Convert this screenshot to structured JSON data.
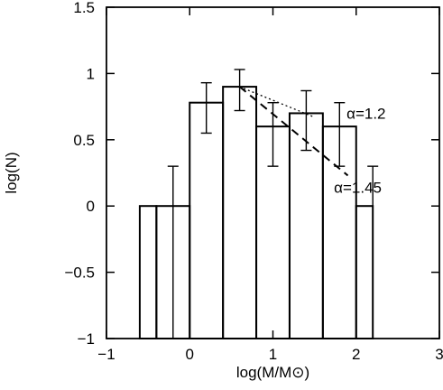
{
  "chart_data": {
    "type": "histogram",
    "xlabel": "log(M/M⊙)",
    "ylabel": "log(N)",
    "xlim": [
      -1,
      3
    ],
    "ylim": [
      -1,
      1.5
    ],
    "xticks": [
      -1,
      0,
      1,
      2,
      3
    ],
    "xtick_labels": [
      "−1",
      "0",
      "1",
      "2",
      "3"
    ],
    "yticks": [
      -1,
      -0.5,
      0,
      0.5,
      1,
      1.5
    ],
    "ytick_labels": [
      "−1",
      "−0.5",
      "0",
      "0.5",
      "1",
      "1.5"
    ],
    "grid": false,
    "bins": [
      {
        "x0": -0.6,
        "x1": -0.4,
        "y": 0.0
      },
      {
        "x0": -0.4,
        "x1": 0.0,
        "y": 0.0
      },
      {
        "x0": 0.0,
        "x1": 0.4,
        "y": 0.78
      },
      {
        "x0": 0.4,
        "x1": 0.8,
        "y": 0.9
      },
      {
        "x0": 0.8,
        "x1": 1.2,
        "y": 0.6
      },
      {
        "x0": 1.2,
        "x1": 1.6,
        "y": 0.7
      },
      {
        "x0": 1.6,
        "x1": 2.0,
        "y": 0.6
      },
      {
        "x0": 2.0,
        "x1": 2.2,
        "y": 0.0
      }
    ],
    "errorbars": [
      {
        "x": -0.2,
        "y": 0.0,
        "lo": -1.0,
        "hi": 0.3
      },
      {
        "x": 0.2,
        "y": 0.78,
        "lo": 0.55,
        "hi": 0.93
      },
      {
        "x": 0.6,
        "y": 0.9,
        "lo": 0.72,
        "hi": 1.03
      },
      {
        "x": 1.0,
        "y": 0.6,
        "lo": 0.3,
        "hi": 0.78
      },
      {
        "x": 1.4,
        "y": 0.7,
        "lo": 0.42,
        "hi": 0.87
      },
      {
        "x": 1.8,
        "y": 0.6,
        "lo": 0.3,
        "hi": 0.78
      },
      {
        "x": 2.2,
        "y": 0.0,
        "lo": -1.0,
        "hi": 0.3
      }
    ],
    "fits": [
      {
        "name": "α=1.2",
        "style": "dotted",
        "x0": 0.6,
        "y0": 0.9,
        "x1": 1.5,
        "y1": 0.67
      },
      {
        "name": "α=1.45",
        "style": "dashed",
        "x0": 0.6,
        "y0": 0.9,
        "x1": 1.9,
        "y1": 0.23
      }
    ],
    "annotations": [
      {
        "text": "α=1.2",
        "x": 2.12,
        "y": 0.66
      },
      {
        "text": "α=1.45",
        "x": 2.02,
        "y": 0.1
      }
    ]
  }
}
